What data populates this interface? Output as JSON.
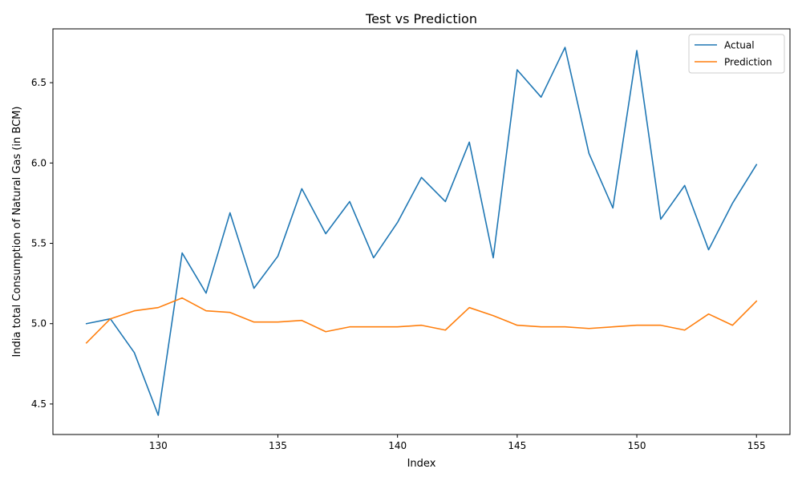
{
  "chart_data": {
    "type": "line",
    "title": "Test vs Prediction",
    "xlabel": "Index",
    "ylabel": "India total Consumption of Natural Gas (in BCM)",
    "xlim": [
      125.6,
      156.4
    ],
    "ylim": [
      4.31,
      6.835
    ],
    "xticks": [
      130,
      135,
      140,
      145,
      150,
      155
    ],
    "yticks": [
      4.5,
      5.0,
      5.5,
      6.0,
      6.5
    ],
    "xtick_labels": [
      "130",
      "135",
      "140",
      "145",
      "150",
      "155"
    ],
    "ytick_labels": [
      "4.5",
      "5.0",
      "5.5",
      "6.0",
      "6.5"
    ],
    "grid": false,
    "legend_position": "upper right",
    "x": [
      127,
      128,
      129,
      130,
      131,
      132,
      133,
      134,
      135,
      136,
      137,
      138,
      139,
      140,
      141,
      142,
      143,
      144,
      145,
      146,
      147,
      148,
      149,
      150,
      151,
      152,
      153,
      154,
      155
    ],
    "series": [
      {
        "name": "Actual",
        "color": "#1f77b4",
        "values": [
          5.0,
          5.03,
          4.82,
          4.43,
          5.44,
          5.19,
          5.69,
          5.22,
          5.42,
          5.84,
          5.56,
          5.76,
          5.41,
          5.63,
          5.91,
          5.76,
          6.13,
          5.41,
          6.58,
          6.41,
          6.72,
          6.06,
          5.72,
          6.7,
          5.65,
          5.86,
          5.46,
          5.75,
          5.99
        ]
      },
      {
        "name": "Prediction",
        "color": "#ff7f0e",
        "values": [
          4.88,
          5.03,
          5.08,
          5.1,
          5.16,
          5.08,
          5.07,
          5.01,
          5.01,
          5.02,
          4.95,
          4.98,
          4.98,
          4.98,
          4.99,
          4.96,
          5.1,
          5.05,
          4.99,
          4.98,
          4.98,
          4.97,
          4.98,
          4.99,
          4.99,
          4.96,
          5.06,
          4.99,
          5.14
        ]
      }
    ]
  }
}
